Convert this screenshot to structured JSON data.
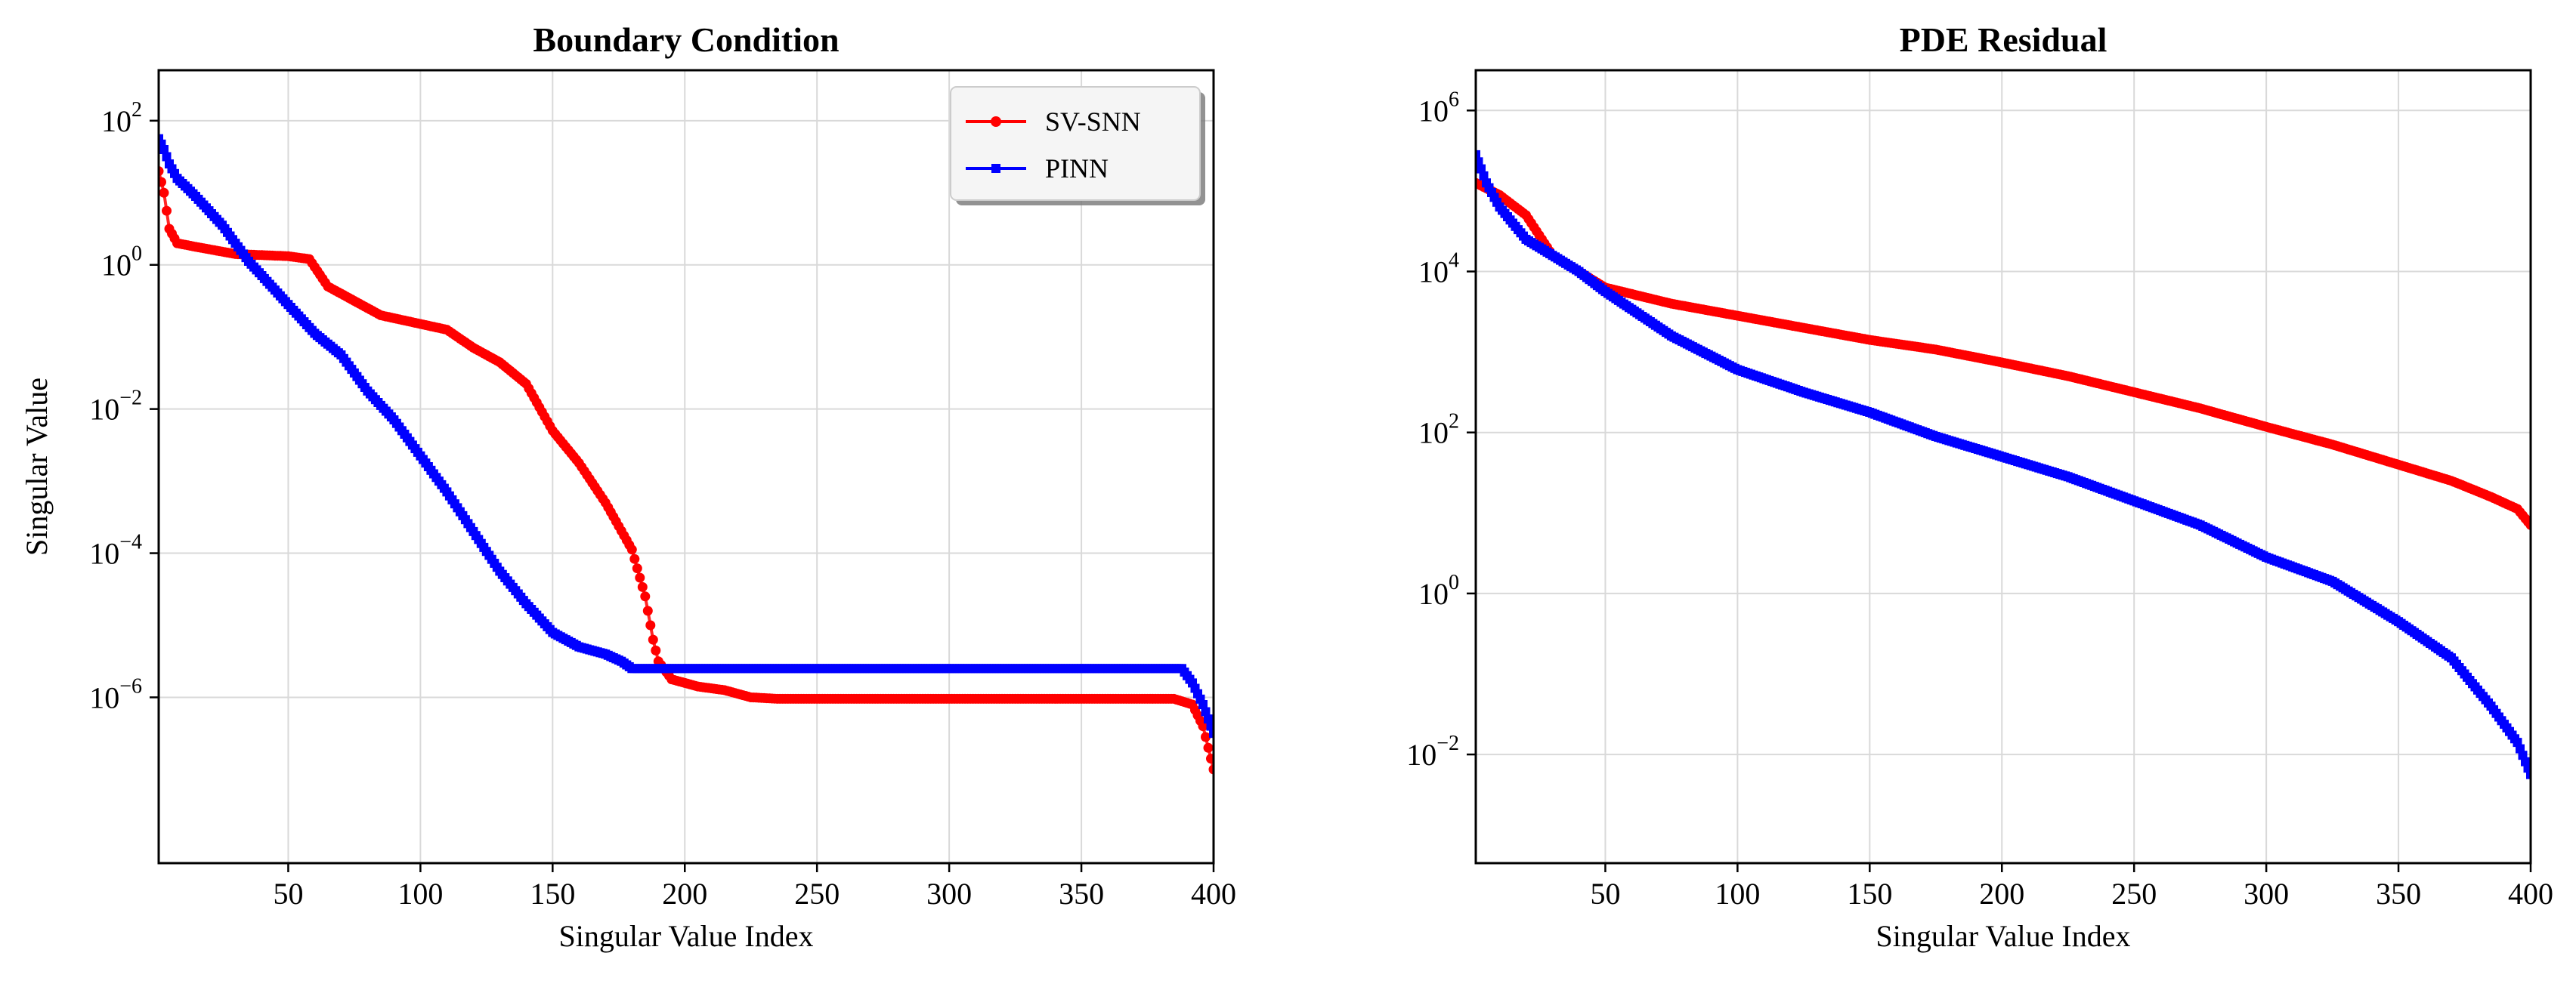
{
  "chart_data": [
    {
      "type": "line",
      "title": "Boundary Condition",
      "xlabel": "Singular Value Index",
      "ylabel": "Singular Value",
      "yscale": "log",
      "xlim": [
        1,
        400
      ],
      "ylim_exp": [
        -8.3,
        2.7
      ],
      "xticks": [
        50,
        100,
        150,
        200,
        250,
        300,
        350,
        400
      ],
      "xtick_labels": [
        "50",
        "100",
        "150",
        "200",
        "250",
        "300",
        "350",
        "400"
      ],
      "yticks_exp": [
        2,
        0,
        -2,
        -4,
        -6
      ],
      "ytick_labels": [
        "10",
        "10",
        "10",
        "10",
        "10"
      ],
      "ytick_sups": [
        "2",
        "0",
        "−2",
        "−4",
        "−6"
      ],
      "grid": true,
      "legend": {
        "position": "top-right",
        "entries": [
          "SV-SNN",
          "PINN"
        ]
      },
      "series": [
        {
          "name": "SV-SNN",
          "color": "#ff0000",
          "marker": "circle",
          "knots": [
            [
              1,
              1.3
            ],
            [
              3,
              1.0
            ],
            [
              5,
              0.5
            ],
            [
              8,
              0.3
            ],
            [
              15,
              0.25
            ],
            [
              30,
              0.15
            ],
            [
              50,
              0.12
            ],
            [
              58,
              0.08
            ],
            [
              65,
              -0.3
            ],
            [
              75,
              -0.5
            ],
            [
              85,
              -0.7
            ],
            [
              100,
              -0.82
            ],
            [
              110,
              -0.9
            ],
            [
              120,
              -1.15
            ],
            [
              130,
              -1.35
            ],
            [
              140,
              -1.65
            ],
            [
              150,
              -2.3
            ],
            [
              160,
              -2.75
            ],
            [
              170,
              -3.3
            ],
            [
              180,
              -3.95
            ],
            [
              185,
              -4.6
            ],
            [
              188,
              -5.2
            ],
            [
              190,
              -5.5
            ],
            [
              195,
              -5.75
            ],
            [
              205,
              -5.85
            ],
            [
              215,
              -5.9
            ],
            [
              225,
              -6.0
            ],
            [
              235,
              -6.02
            ],
            [
              385,
              -6.02
            ],
            [
              392,
              -6.1
            ],
            [
              396,
              -6.4
            ],
            [
              400,
              -7.0
            ]
          ]
        },
        {
          "name": "PINN",
          "color": "#0000ff",
          "marker": "square",
          "knots": [
            [
              1,
              1.75
            ],
            [
              3,
              1.6
            ],
            [
              5,
              1.4
            ],
            [
              8,
              1.2
            ],
            [
              15,
              0.95
            ],
            [
              25,
              0.55
            ],
            [
              35,
              0.05
            ],
            [
              45,
              -0.35
            ],
            [
              60,
              -0.95
            ],
            [
              70,
              -1.25
            ],
            [
              80,
              -1.75
            ],
            [
              90,
              -2.15
            ],
            [
              100,
              -2.65
            ],
            [
              110,
              -3.15
            ],
            [
              120,
              -3.7
            ],
            [
              130,
              -4.25
            ],
            [
              140,
              -4.7
            ],
            [
              150,
              -5.1
            ],
            [
              160,
              -5.3
            ],
            [
              170,
              -5.4
            ],
            [
              176,
              -5.5
            ],
            [
              180,
              -5.6
            ],
            [
              388,
              -5.6
            ],
            [
              392,
              -5.8
            ],
            [
              396,
              -6.1
            ],
            [
              400,
              -6.5
            ]
          ]
        }
      ]
    },
    {
      "type": "line",
      "title": "PDE Residual",
      "xlabel": "Singular Value Index",
      "ylabel": "",
      "yscale": "log",
      "xlim": [
        1,
        400
      ],
      "ylim_exp": [
        -3.35,
        6.5
      ],
      "xticks": [
        50,
        100,
        150,
        200,
        250,
        300,
        350,
        400
      ],
      "xtick_labels": [
        "50",
        "100",
        "150",
        "200",
        "250",
        "300",
        "350",
        "400"
      ],
      "yticks_exp": [
        6,
        4,
        2,
        0,
        -2
      ],
      "ytick_labels": [
        "10",
        "10",
        "10",
        "10",
        "10"
      ],
      "ytick_sups": [
        "6",
        "4",
        "2",
        "0",
        "−2"
      ],
      "grid": true,
      "series": [
        {
          "name": "SV-SNN",
          "color": "#ff0000",
          "marker": "circle",
          "knots": [
            [
              1,
              5.1
            ],
            [
              10,
              4.95
            ],
            [
              20,
              4.7
            ],
            [
              25,
              4.45
            ],
            [
              30,
              4.2
            ],
            [
              40,
              4.0
            ],
            [
              50,
              3.8
            ],
            [
              75,
              3.6
            ],
            [
              100,
              3.45
            ],
            [
              125,
              3.3
            ],
            [
              150,
              3.15
            ],
            [
              175,
              3.03
            ],
            [
              200,
              2.87
            ],
            [
              225,
              2.7
            ],
            [
              250,
              2.5
            ],
            [
              275,
              2.3
            ],
            [
              300,
              2.07
            ],
            [
              325,
              1.85
            ],
            [
              350,
              1.6
            ],
            [
              370,
              1.4
            ],
            [
              385,
              1.2
            ],
            [
              395,
              1.05
            ],
            [
              400,
              0.85
            ]
          ]
        },
        {
          "name": "PINN",
          "color": "#0000ff",
          "marker": "square",
          "knots": [
            [
              1,
              5.45
            ],
            [
              5,
              5.1
            ],
            [
              10,
              4.8
            ],
            [
              20,
              4.4
            ],
            [
              30,
              4.2
            ],
            [
              40,
              4.0
            ],
            [
              50,
              3.75
            ],
            [
              75,
              3.2
            ],
            [
              100,
              2.78
            ],
            [
              125,
              2.5
            ],
            [
              150,
              2.25
            ],
            [
              175,
              1.95
            ],
            [
              200,
              1.7
            ],
            [
              225,
              1.45
            ],
            [
              250,
              1.15
            ],
            [
              275,
              0.85
            ],
            [
              300,
              0.45
            ],
            [
              325,
              0.15
            ],
            [
              350,
              -0.35
            ],
            [
              370,
              -0.8
            ],
            [
              385,
              -1.4
            ],
            [
              395,
              -1.85
            ],
            [
              400,
              -2.25
            ]
          ]
        }
      ]
    }
  ]
}
